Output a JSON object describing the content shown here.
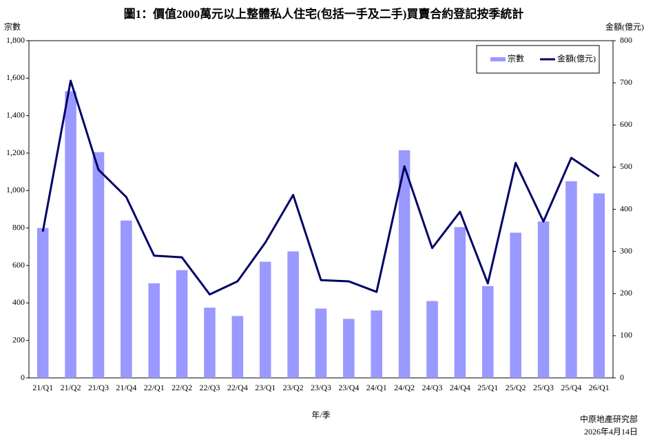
{
  "chart_data": {
    "type": "bar-line",
    "title": "圖1：價值2000萬元以上整體私人住宅(包括一手及二手)買賣合約登記按季統計",
    "y_label": "宗數",
    "y2_label": "金額(億元)",
    "x_label": "年/季",
    "source": "中原地產研究部",
    "date": "2026年4月14日",
    "categories": [
      "21/Q1",
      "21/Q2",
      "21/Q3",
      "21/Q4",
      "22/Q1",
      "22/Q2",
      "22/Q3",
      "22/Q4",
      "23/Q1",
      "23/Q2",
      "23/Q3",
      "23/Q4",
      "24/Q1",
      "24/Q2",
      "24/Q3",
      "24/Q4",
      "25/Q1",
      "25/Q2",
      "25/Q3",
      "25/Q4",
      "26/Q1"
    ],
    "series": [
      {
        "name": "宗數",
        "color": "#9999ff",
        "type": "bar",
        "values": [
          800,
          1530,
          1205,
          840,
          505,
          575,
          375,
          330,
          620,
          675,
          370,
          315,
          360,
          1215,
          410,
          805,
          490,
          775,
          835,
          1050,
          985
        ]
      },
      {
        "name": "金額(億元)",
        "color": "#000066",
        "type": "line",
        "axis": "y2",
        "values": [
          347,
          705,
          494,
          429,
          290,
          286,
          198,
          229,
          321,
          434,
          232,
          229,
          204,
          502,
          308,
          394,
          224,
          510,
          371,
          522,
          478
        ]
      }
    ],
    "ylim": [
      0,
      1800
    ],
    "yticks": [
      0,
      200,
      400,
      600,
      800,
      {
        "value": 1000,
        "label": "1,000"
      },
      {
        "value": 1200,
        "label": "1,200"
      },
      {
        "value": 1400,
        "label": "1,400"
      },
      {
        "value": 1600,
        "label": "1,600"
      },
      {
        "value": 1800,
        "label": "1,800"
      }
    ],
    "y2lim": [
      0,
      800
    ],
    "y2ticks": [
      0,
      100,
      200,
      300,
      400,
      500,
      600,
      700,
      800
    ],
    "legend": "top-right"
  }
}
